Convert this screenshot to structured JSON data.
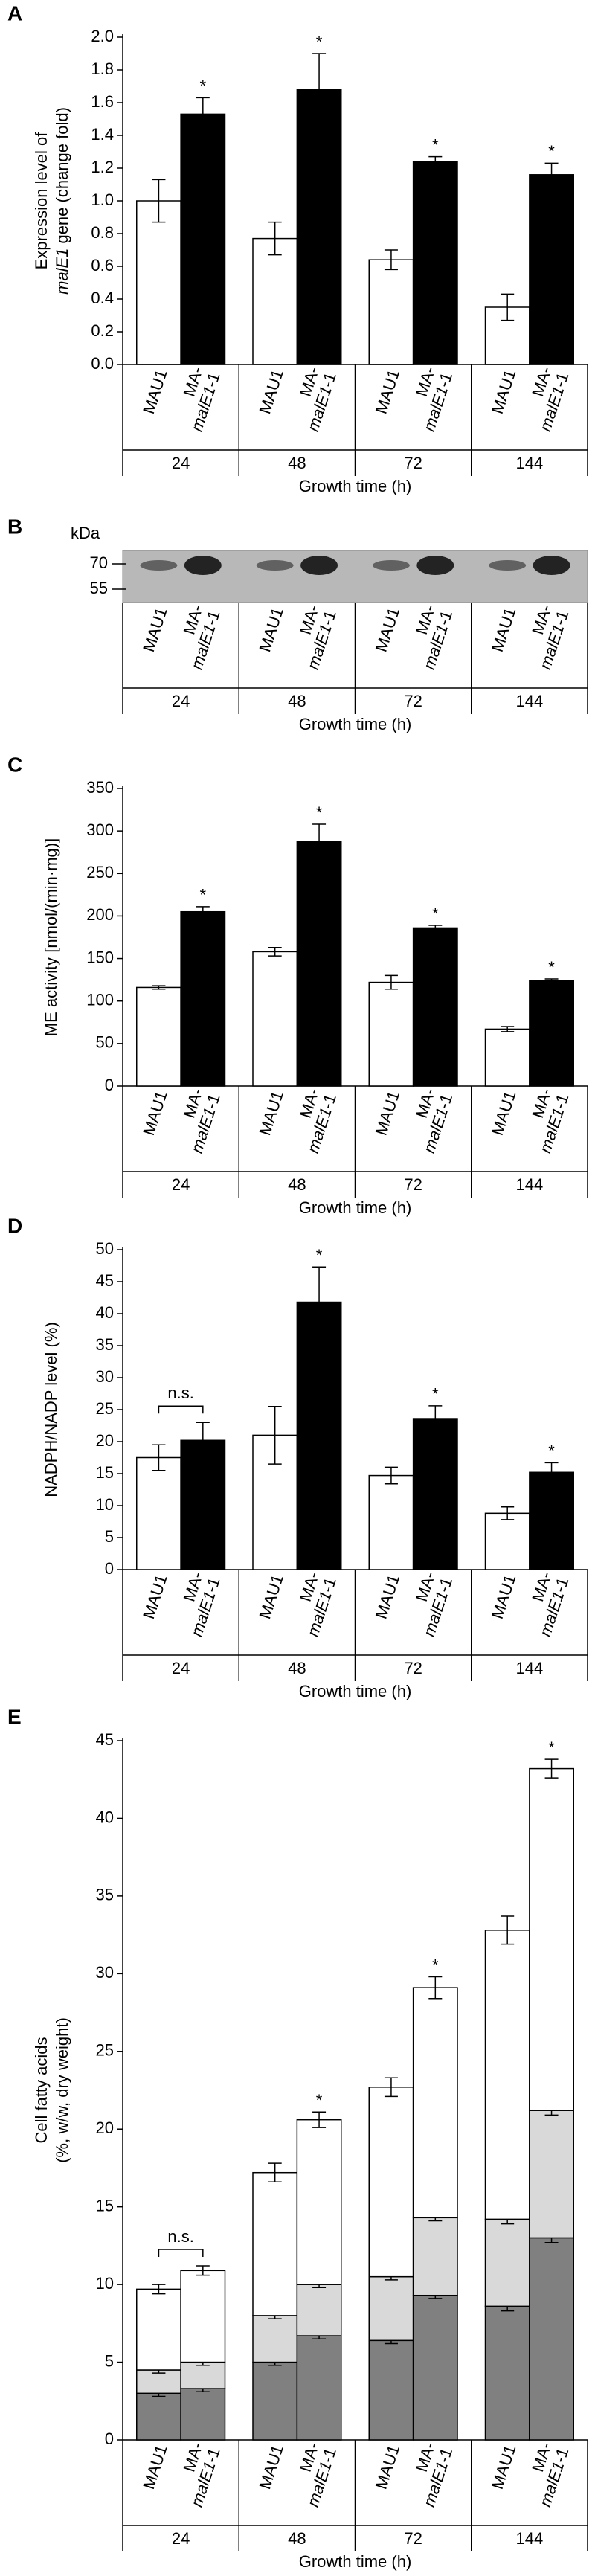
{
  "chart_data": [
    {
      "type": "bar",
      "panel_label": "A",
      "y_label": [
        "Expression level of",
        "malE1",
        "gene (change fold)"
      ],
      "ylim": [
        0,
        2.0
      ],
      "yticks": [
        {
          "value": 0,
          "label": "0.0"
        },
        0.2,
        0.4,
        0.6,
        0.8,
        {
          "value": 1,
          "label": "1.0"
        },
        1.2,
        1.4,
        1.6,
        1.8,
        {
          "value": 2,
          "label": "2.0"
        }
      ],
      "groups": [
        "24",
        "48",
        "72",
        "144"
      ],
      "strains": [
        [
          "MAU1"
        ],
        [
          "MA-",
          "malE1",
          "-1"
        ]
      ],
      "xlabel": "Growth time (h)",
      "series": [
        {
          "color": "#ffffff",
          "values": [
            1.0,
            0.77,
            0.64,
            0.35
          ],
          "errors": [
            0.13,
            0.1,
            0.06,
            0.08
          ],
          "marks": [
            null,
            null,
            null,
            null
          ]
        },
        {
          "color": "#000000",
          "values": [
            1.53,
            1.68,
            1.24,
            1.16
          ],
          "errors": [
            0.1,
            0.22,
            0.03,
            0.07
          ],
          "marks": [
            "*",
            "*",
            "*",
            "*"
          ]
        }
      ]
    },
    {
      "type": "blot",
      "panel_label": "B",
      "unit": "kDa",
      "markers": [
        "70",
        "55"
      ],
      "groups": [
        "24",
        "48",
        "72",
        "144"
      ],
      "strains": [
        [
          "MAU1"
        ],
        [
          "MA-",
          "malE1",
          "-1"
        ]
      ],
      "xlabel": "Growth time (h)"
    },
    {
      "type": "bar",
      "panel_label": "C",
      "y_label": [
        "ME activity [nmol/(min·mg)]"
      ],
      "ylim": [
        0,
        350
      ],
      "yticks": [
        0,
        50,
        100,
        150,
        200,
        250,
        300,
        350
      ],
      "groups": [
        "24",
        "48",
        "72",
        "144"
      ],
      "strains": [
        [
          "MAU1"
        ],
        [
          "MA-",
          "malE1",
          "-1"
        ]
      ],
      "xlabel": "Growth time (h)",
      "series": [
        {
          "color": "#ffffff",
          "values": [
            116,
            158,
            122,
            67
          ],
          "errors": [
            2,
            5,
            8,
            3
          ],
          "marks": [
            null,
            null,
            null,
            null
          ]
        },
        {
          "color": "#000000",
          "values": [
            205,
            288,
            186,
            124
          ],
          "errors": [
            6,
            20,
            3,
            2
          ],
          "marks": [
            "*",
            "*",
            "*",
            "*"
          ]
        }
      ]
    },
    {
      "type": "bar",
      "panel_label": "D",
      "y_label": [
        "NADPH/NADP level (%)"
      ],
      "ylim": [
        0,
        50
      ],
      "yticks": [
        0,
        5,
        10,
        15,
        20,
        25,
        30,
        35,
        40,
        45,
        50
      ],
      "groups": [
        "24",
        "48",
        "72",
        "144"
      ],
      "strains": [
        [
          "MAU1"
        ],
        [
          "MA-",
          "malE1",
          "-1"
        ]
      ],
      "xlabel": "Growth time (h)",
      "ns_labels": [
        "n.s.",
        null,
        null,
        null
      ],
      "series": [
        {
          "color": "#ffffff",
          "values": [
            17.5,
            21,
            14.7,
            8.8
          ],
          "errors": [
            2,
            4.5,
            1.3,
            1
          ],
          "marks": [
            null,
            null,
            null,
            null
          ]
        },
        {
          "color": "#000000",
          "values": [
            20.2,
            41.8,
            23.6,
            15.2
          ],
          "errors": [
            2.8,
            5.5,
            2,
            1.5
          ],
          "marks": [
            null,
            "*",
            "*",
            "*"
          ]
        }
      ]
    },
    {
      "type": "stacked_bar",
      "panel_label": "E",
      "y_label": [
        "Cell fatty acids",
        "(%, w/w, dry weight)"
      ],
      "ylim": [
        0,
        45
      ],
      "yticks": [
        0,
        5,
        10,
        15,
        20,
        25,
        30,
        35,
        40,
        45
      ],
      "groups": [
        "24",
        "48",
        "72",
        "144"
      ],
      "strains": [
        [
          "MAU1"
        ],
        [
          "MA-",
          "malE1",
          "-1"
        ]
      ],
      "xlabel": "Growth time (h)",
      "ns_labels": [
        "n.s.",
        null,
        null,
        null
      ],
      "series": [
        {
          "segments": [
            {
              "color": "#808080",
              "values": [
                3.0,
                5.0,
                6.4,
                8.6
              ],
              "errors": [
                0.2,
                0.2,
                0.2,
                0.3
              ]
            },
            {
              "color": "#d9d9d9",
              "values": [
                1.5,
                3.0,
                4.1,
                5.6
              ],
              "errors": [
                0.2,
                0.2,
                0.2,
                0.3
              ]
            },
            {
              "color": "#ffffff",
              "values": [
                5.2,
                9.2,
                12.2,
                18.6
              ],
              "errors": [
                0.3,
                0.6,
                0.6,
                0.9
              ]
            }
          ],
          "marks": [
            null,
            null,
            null,
            null
          ]
        },
        {
          "segments": [
            {
              "color": "#808080",
              "values": [
                3.3,
                6.7,
                9.3,
                13.0
              ],
              "errors": [
                0.2,
                0.2,
                0.2,
                0.3
              ]
            },
            {
              "color": "#d9d9d9",
              "values": [
                1.7,
                3.3,
                5.0,
                8.2
              ],
              "errors": [
                0.2,
                0.2,
                0.2,
                0.3
              ]
            },
            {
              "color": "#ffffff",
              "values": [
                5.9,
                10.6,
                14.8,
                22.0
              ],
              "errors": [
                0.3,
                0.5,
                0.7,
                0.6
              ]
            }
          ],
          "marks": [
            null,
            "*",
            "*",
            "*"
          ]
        }
      ]
    }
  ]
}
